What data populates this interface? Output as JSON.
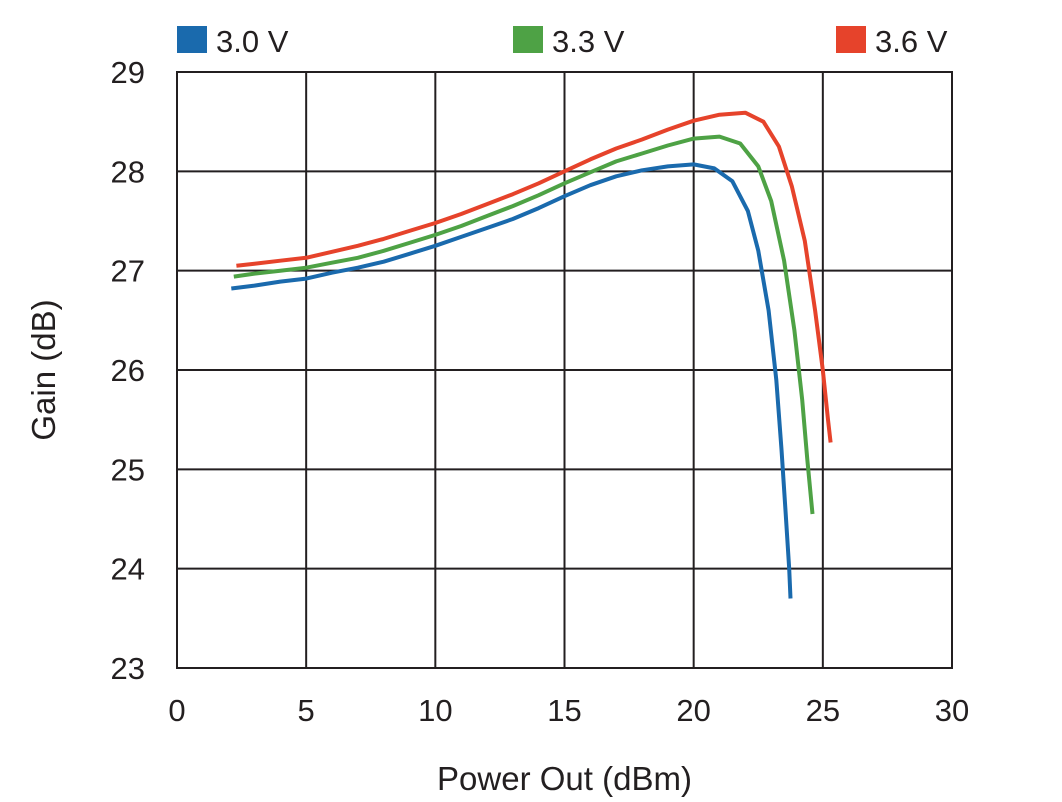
{
  "chart_data": {
    "type": "line",
    "title": "",
    "xlabel": "Power Out (dBm)",
    "ylabel": "Gain (dB)",
    "xlim": [
      0,
      30
    ],
    "ylim": [
      23,
      29
    ],
    "xticks": [
      0,
      5,
      10,
      15,
      20,
      25,
      30
    ],
    "yticks": [
      23,
      24,
      25,
      26,
      27,
      28,
      29
    ],
    "grid": true,
    "legend_position": "top",
    "series": [
      {
        "name": "3.0 V",
        "color": "#1a6aad",
        "points": [
          [
            2.1,
            26.82
          ],
          [
            3,
            26.85
          ],
          [
            4,
            26.89
          ],
          [
            5,
            26.92
          ],
          [
            6,
            26.98
          ],
          [
            7,
            27.03
          ],
          [
            8,
            27.09
          ],
          [
            9,
            27.17
          ],
          [
            10,
            27.25
          ],
          [
            11,
            27.34
          ],
          [
            12,
            27.43
          ],
          [
            13,
            27.52
          ],
          [
            14,
            27.63
          ],
          [
            15,
            27.75
          ],
          [
            16,
            27.86
          ],
          [
            17,
            27.95
          ],
          [
            18,
            28.01
          ],
          [
            19,
            28.05
          ],
          [
            20,
            28.07
          ],
          [
            20.8,
            28.03
          ],
          [
            21.5,
            27.9
          ],
          [
            22.1,
            27.6
          ],
          [
            22.5,
            27.2
          ],
          [
            22.9,
            26.6
          ],
          [
            23.2,
            25.9
          ],
          [
            23.4,
            25.2
          ],
          [
            23.55,
            24.6
          ],
          [
            23.7,
            24.0
          ],
          [
            23.75,
            23.7
          ]
        ]
      },
      {
        "name": "3.3 V",
        "color": "#4ea245",
        "points": [
          [
            2.2,
            26.94
          ],
          [
            3,
            26.97
          ],
          [
            4,
            27.0
          ],
          [
            5,
            27.03
          ],
          [
            6,
            27.08
          ],
          [
            7,
            27.13
          ],
          [
            8,
            27.2
          ],
          [
            9,
            27.28
          ],
          [
            10,
            27.36
          ],
          [
            11,
            27.45
          ],
          [
            12,
            27.55
          ],
          [
            13,
            27.65
          ],
          [
            14,
            27.76
          ],
          [
            15,
            27.88
          ],
          [
            16,
            27.99
          ],
          [
            17,
            28.1
          ],
          [
            18,
            28.18
          ],
          [
            19,
            28.26
          ],
          [
            20,
            28.33
          ],
          [
            21,
            28.35
          ],
          [
            21.8,
            28.28
          ],
          [
            22.5,
            28.05
          ],
          [
            23.0,
            27.7
          ],
          [
            23.5,
            27.1
          ],
          [
            23.9,
            26.4
          ],
          [
            24.2,
            25.7
          ],
          [
            24.4,
            25.1
          ],
          [
            24.6,
            24.55
          ]
        ]
      },
      {
        "name": "3.6 V",
        "color": "#e6432b",
        "points": [
          [
            2.3,
            27.05
          ],
          [
            3,
            27.07
          ],
          [
            4,
            27.1
          ],
          [
            5,
            27.13
          ],
          [
            6,
            27.19
          ],
          [
            7,
            27.25
          ],
          [
            8,
            27.32
          ],
          [
            9,
            27.4
          ],
          [
            10,
            27.48
          ],
          [
            11,
            27.57
          ],
          [
            12,
            27.67
          ],
          [
            13,
            27.77
          ],
          [
            14,
            27.88
          ],
          [
            15,
            28.0
          ],
          [
            16,
            28.12
          ],
          [
            17,
            28.23
          ],
          [
            18,
            28.32
          ],
          [
            19,
            28.42
          ],
          [
            20,
            28.51
          ],
          [
            21,
            28.57
          ],
          [
            22,
            28.59
          ],
          [
            22.7,
            28.5
          ],
          [
            23.3,
            28.25
          ],
          [
            23.8,
            27.85
          ],
          [
            24.3,
            27.3
          ],
          [
            24.7,
            26.6
          ],
          [
            25.0,
            26.0
          ],
          [
            25.2,
            25.5
          ],
          [
            25.3,
            25.27
          ]
        ]
      }
    ]
  }
}
